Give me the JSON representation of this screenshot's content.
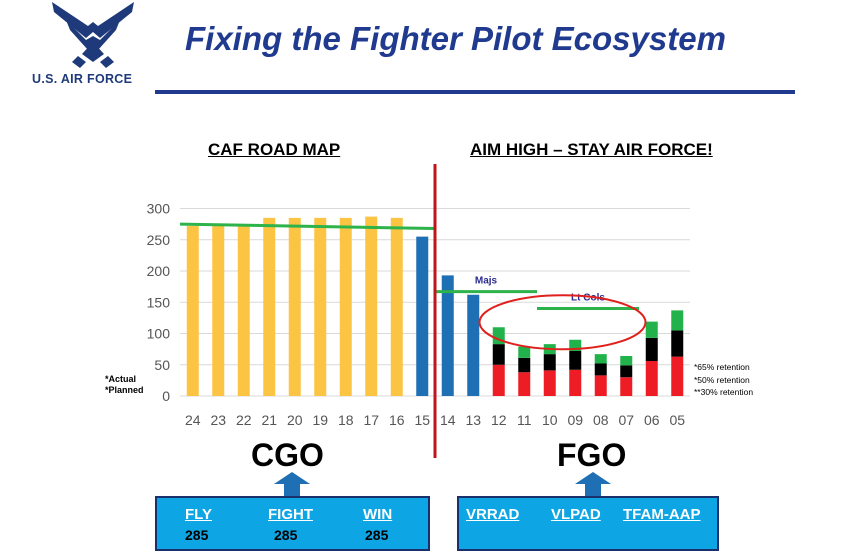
{
  "header": {
    "title": "Fixing the Fighter Pilot Ecosystem",
    "brand": "U.S. AIR FORCE"
  },
  "sections": {
    "left": "CAF ROAD MAP",
    "right": "AIM HIGH – STAY AIR FORCE!"
  },
  "groups": {
    "left": "CGO",
    "right": "FGO"
  },
  "boxes": {
    "left": [
      {
        "label": "FLY",
        "value": "285"
      },
      {
        "label": "FIGHT",
        "value": "285"
      },
      {
        "label": "WIN",
        "value": "285"
      }
    ],
    "right": [
      {
        "label": "VRRAD"
      },
      {
        "label": "VLPAD"
      },
      {
        "label": "TFAM-AAP"
      }
    ]
  },
  "legend": {
    "actual": "*Actual",
    "planned": "*Planned"
  },
  "retention": {
    "r65": "*65% retention",
    "r50": "*50% retention",
    "r30": "**30% retention"
  },
  "colors": {
    "planned": "#fcc443",
    "actual": "#1f6fb5",
    "r65": "#22b24c",
    "r50": "#000000",
    "r30": "#ee1c25",
    "target": "#2db34a",
    "divider": "#c0141c",
    "ellipse": "#e0201c",
    "title": "#1f3a8f",
    "box": "#0ea5e4"
  },
  "chart_data": {
    "type": "bar",
    "categories": [
      "24",
      "23",
      "22",
      "21",
      "20",
      "19",
      "18",
      "17",
      "16",
      "15",
      "14",
      "13",
      "12",
      "11",
      "10",
      "09",
      "08",
      "07",
      "06",
      "05"
    ],
    "yticks": [
      0,
      50,
      100,
      150,
      200,
      250,
      300
    ],
    "ylim": [
      0,
      320
    ],
    "grid": true,
    "series": [
      {
        "name": "*Planned",
        "color_key": "planned",
        "values": [
          272,
          272,
          272,
          285,
          285,
          285,
          285,
          287,
          285,
          null,
          null,
          null,
          null,
          null,
          null,
          null,
          null,
          null,
          null,
          null
        ]
      },
      {
        "name": "*Actual",
        "color_key": "actual",
        "values": [
          null,
          null,
          null,
          null,
          null,
          null,
          null,
          null,
          null,
          255,
          193,
          162,
          null,
          null,
          null,
          null,
          null,
          null,
          null,
          null
        ]
      },
      {
        "name": "**30% retention",
        "color_key": "r30",
        "values": [
          null,
          null,
          null,
          null,
          null,
          null,
          null,
          null,
          null,
          null,
          null,
          null,
          50,
          38,
          41,
          42,
          33,
          30,
          56,
          63
        ]
      },
      {
        "name": "*50% retention",
        "color_key": "r50",
        "values": [
          null,
          null,
          null,
          null,
          null,
          null,
          null,
          null,
          null,
          null,
          null,
          null,
          33,
          23,
          26,
          30,
          19,
          19,
          37,
          42
        ]
      },
      {
        "name": "*65% retention",
        "color_key": "r65",
        "values": [
          null,
          null,
          null,
          null,
          null,
          null,
          null,
          null,
          null,
          null,
          null,
          null,
          27,
          18,
          16,
          18,
          15,
          15,
          26,
          32
        ]
      }
    ],
    "reference_lines": [
      {
        "label": "",
        "value_start": 275,
        "value_end": 268,
        "from": "24",
        "to": "15"
      },
      {
        "label": "Majs",
        "value": 167,
        "from": "14",
        "to": "11"
      },
      {
        "label": "Lt Cols",
        "value": 140,
        "from": "10",
        "to": "07"
      }
    ]
  }
}
